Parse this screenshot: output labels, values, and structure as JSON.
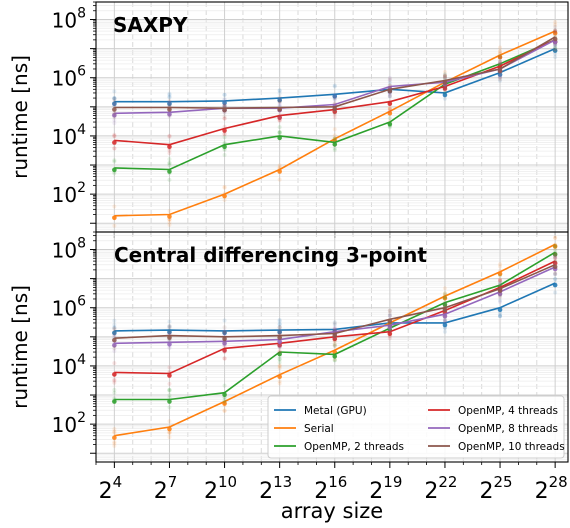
{
  "colors": {
    "Metal (GPU)": "#1f77b4",
    "Serial": "#ff7f0e",
    "OpenMP, 2 threads": "#2ca02c",
    "OpenMP, 4 threads": "#d62728",
    "OpenMP, 8 threads": "#9467bd",
    "OpenMP, 10 threads": "#8c564b"
  },
  "chart_data": [
    {
      "type": "line",
      "title": "SAXPY",
      "ylabel": "runtime [ns]",
      "xlabel": "",
      "xscale": "log2",
      "yscale": "log10",
      "xlim_exp2": [
        3,
        28.7
      ],
      "ylim": [
        5,
        400000000
      ],
      "grid": true,
      "x_tick_exponents": [
        4,
        7,
        10,
        13,
        16,
        19,
        22,
        25,
        28
      ],
      "y_tick_labels": [
        "10^2",
        "10^4",
        "10^6",
        "10^8"
      ],
      "y_tick_exponents": [
        2,
        4,
        6,
        8
      ],
      "x_exp2": [
        4,
        7,
        10,
        13,
        16,
        19,
        22,
        25,
        28
      ],
      "series": [
        {
          "name": "Metal (GPU)",
          "values": [
            150000,
            150000,
            160000,
            200000,
            270000,
            400000,
            300000,
            1500000,
            10000000
          ]
        },
        {
          "name": "Serial",
          "values": [
            18,
            20,
            100,
            700,
            8000,
            70000,
            700000,
            6000000,
            40000000
          ]
        },
        {
          "name": "OpenMP, 2 threads",
          "values": [
            800,
            700,
            5000,
            10000,
            6000,
            30000,
            600000,
            3000000,
            20000000
          ]
        },
        {
          "name": "OpenMP, 4 threads",
          "values": [
            7000,
            5000,
            18000,
            50000,
            80000,
            150000,
            500000,
            2500000,
            20000000
          ]
        },
        {
          "name": "OpenMP, 8 threads",
          "values": [
            60000,
            65000,
            90000,
            90000,
            120000,
            500000,
            700000,
            2000000,
            20000000
          ]
        },
        {
          "name": "OpenMP, 10 threads",
          "values": [
            95000,
            95000,
            90000,
            95000,
            100000,
            400000,
            800000,
            2000000,
            25000000
          ]
        }
      ]
    },
    {
      "type": "line",
      "title": "Central differencing 3-point",
      "ylabel": "runtime [ns]",
      "xlabel": "array size",
      "xscale": "log2",
      "yscale": "log10",
      "xlim_exp2": [
        3,
        28.7
      ],
      "ylim": [
        5,
        400000000
      ],
      "grid": true,
      "x_tick_exponents": [
        4,
        7,
        10,
        13,
        16,
        19,
        22,
        25,
        28
      ],
      "y_tick_labels": [
        "10^2",
        "10^4",
        "10^6",
        "10^8"
      ],
      "y_tick_exponents": [
        2,
        4,
        6,
        8
      ],
      "x_exp2": [
        4,
        7,
        10,
        13,
        16,
        19,
        22,
        25,
        28
      ],
      "series": [
        {
          "name": "Metal (GPU)",
          "values": [
            160000,
            170000,
            160000,
            170000,
            180000,
            300000,
            300000,
            1000000,
            7000000
          ]
        },
        {
          "name": "Serial",
          "values": [
            40,
            80,
            600,
            5000,
            35000,
            300000,
            2500000,
            17000000,
            150000000
          ]
        },
        {
          "name": "OpenMP, 2 threads",
          "values": [
            700,
            700,
            1200,
            30000,
            25000,
            200000,
            1500000,
            6000000,
            80000000
          ]
        },
        {
          "name": "OpenMP, 4 threads",
          "values": [
            6000,
            5500,
            40000,
            60000,
            100000,
            150000,
            800000,
            5000000,
            40000000
          ]
        },
        {
          "name": "OpenMP, 8 threads",
          "values": [
            60000,
            65000,
            70000,
            80000,
            150000,
            250000,
            600000,
            3500000,
            25000000
          ]
        },
        {
          "name": "OpenMP, 10 threads",
          "values": [
            90000,
            110000,
            100000,
            110000,
            130000,
            400000,
            1000000,
            4500000,
            30000000
          ]
        }
      ],
      "legend": {
        "placement": "lower-right",
        "columns": 2,
        "entries": [
          "Metal (GPU)",
          "Serial",
          "OpenMP, 2 threads",
          "OpenMP, 4 threads",
          "OpenMP, 8 threads",
          "OpenMP, 10 threads"
        ]
      }
    }
  ]
}
